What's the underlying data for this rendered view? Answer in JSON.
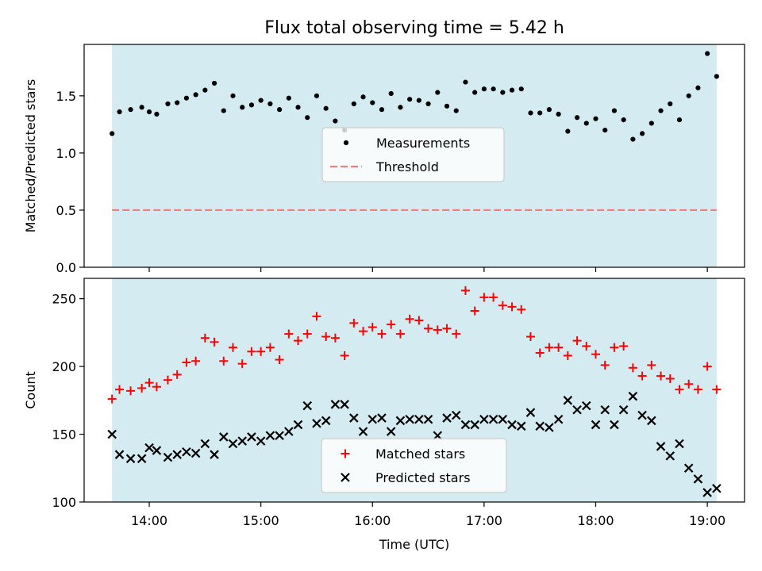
{
  "title": "Flux total observing time = 5.42 h",
  "colors": {
    "shade": "#d4ebf1",
    "measurement": "#000000",
    "threshold": "#f08080",
    "matched": "#ff0000",
    "predicted": "#000000"
  },
  "chart_data": [
    {
      "type": "scatter",
      "ylabel": "Matched/Predicted stars",
      "ylim": [
        0,
        1.95
      ],
      "yticks": [
        0.0,
        0.5,
        1.0,
        1.5
      ],
      "ytick_labels": [
        "0.0",
        "0.5",
        "1.0",
        "1.5"
      ],
      "xlim": [
        "13:25",
        "19:20"
      ],
      "xticks": [
        "14:00",
        "15:00",
        "16:00",
        "17:00",
        "18:00",
        "19:00"
      ],
      "shaded_span": [
        "13:40",
        "19:05"
      ],
      "threshold": 0.5,
      "legend": {
        "placement": "center",
        "entries": [
          "Measurements",
          "Threshold"
        ]
      },
      "series": [
        {
          "name": "Measurements",
          "marker": "dot",
          "x": [
            "13:40",
            "13:44",
            "13:50",
            "13:56",
            "14:00",
            "14:04",
            "14:10",
            "14:15",
            "14:20",
            "14:25",
            "14:30",
            "14:35",
            "14:40",
            "14:45",
            "14:50",
            "14:55",
            "15:00",
            "15:05",
            "15:10",
            "15:15",
            "15:20",
            "15:25",
            "15:30",
            "15:35",
            "15:40",
            "15:45",
            "15:50",
            "15:55",
            "16:00",
            "16:05",
            "16:10",
            "16:15",
            "16:20",
            "16:25",
            "16:30",
            "16:35",
            "16:40",
            "16:45",
            "16:50",
            "16:55",
            "17:00",
            "17:05",
            "17:10",
            "17:15",
            "17:20",
            "17:25",
            "17:30",
            "17:35",
            "17:40",
            "17:45",
            "17:50",
            "17:55",
            "18:00",
            "18:05",
            "18:10",
            "18:15",
            "18:20",
            "18:25",
            "18:30",
            "18:35",
            "18:40",
            "18:45",
            "18:50",
            "18:55",
            "19:00",
            "19:05"
          ],
          "y": [
            1.17,
            1.36,
            1.38,
            1.4,
            1.36,
            1.34,
            1.43,
            1.44,
            1.48,
            1.51,
            1.55,
            1.61,
            1.37,
            1.5,
            1.4,
            1.42,
            1.46,
            1.43,
            1.38,
            1.48,
            1.4,
            1.31,
            1.5,
            1.39,
            1.28,
            1.2,
            1.43,
            1.49,
            1.44,
            1.38,
            1.52,
            1.4,
            1.47,
            1.46,
            1.43,
            1.53,
            1.41,
            1.37,
            1.62,
            1.53,
            1.56,
            1.56,
            1.53,
            1.55,
            1.56,
            1.35,
            1.35,
            1.38,
            1.34,
            1.19,
            1.31,
            1.26,
            1.3,
            1.2,
            1.37,
            1.29,
            1.12,
            1.17,
            1.26,
            1.37,
            1.43,
            1.29,
            1.5,
            1.57,
            1.87,
            1.67
          ]
        }
      ]
    },
    {
      "type": "scatter",
      "xlabel": "Time (UTC)",
      "ylabel": "Count",
      "ylim": [
        100,
        265
      ],
      "yticks": [
        100,
        150,
        200,
        250
      ],
      "ytick_labels": [
        "100",
        "150",
        "200",
        "250"
      ],
      "xlim": [
        "13:25",
        "19:20"
      ],
      "xticks": [
        "14:00",
        "15:00",
        "16:00",
        "17:00",
        "18:00",
        "19:00"
      ],
      "xtick_labels": [
        "14:00",
        "15:00",
        "16:00",
        "17:00",
        "18:00",
        "19:00"
      ],
      "shaded_span": [
        "13:40",
        "19:05"
      ],
      "legend": {
        "placement": "lower center",
        "entries": [
          "Matched stars",
          "Predicted stars"
        ]
      },
      "series": [
        {
          "name": "Matched stars",
          "marker": "plus",
          "x": [
            "13:40",
            "13:44",
            "13:50",
            "13:56",
            "14:00",
            "14:04",
            "14:10",
            "14:15",
            "14:20",
            "14:25",
            "14:30",
            "14:35",
            "14:40",
            "14:45",
            "14:50",
            "14:55",
            "15:00",
            "15:05",
            "15:10",
            "15:15",
            "15:20",
            "15:25",
            "15:30",
            "15:35",
            "15:40",
            "15:45",
            "15:50",
            "15:55",
            "16:00",
            "16:05",
            "16:10",
            "16:15",
            "16:20",
            "16:25",
            "16:30",
            "16:35",
            "16:40",
            "16:45",
            "16:50",
            "16:55",
            "17:00",
            "17:05",
            "17:10",
            "17:15",
            "17:20",
            "17:25",
            "17:30",
            "17:35",
            "17:40",
            "17:45",
            "17:50",
            "17:55",
            "18:00",
            "18:05",
            "18:10",
            "18:15",
            "18:20",
            "18:25",
            "18:30",
            "18:35",
            "18:40",
            "18:45",
            "18:50",
            "18:55",
            "19:00",
            "19:05"
          ],
          "y": [
            176,
            183,
            182,
            184,
            188,
            185,
            190,
            194,
            203,
            204,
            221,
            218,
            204,
            214,
            202,
            211,
            211,
            214,
            205,
            224,
            219,
            224,
            237,
            222,
            221,
            208,
            232,
            226,
            229,
            224,
            231,
            224,
            235,
            234,
            228,
            227,
            228,
            224,
            256,
            241,
            251,
            251,
            245,
            244,
            242,
            222,
            210,
            214,
            214,
            208,
            219,
            215,
            209,
            201,
            214,
            215,
            199,
            193,
            201,
            193,
            191,
            183,
            187,
            183,
            200,
            183
          ]
        },
        {
          "name": "Predicted stars",
          "marker": "x",
          "x": [
            "13:40",
            "13:44",
            "13:50",
            "13:56",
            "14:00",
            "14:04",
            "14:10",
            "14:15",
            "14:20",
            "14:25",
            "14:30",
            "14:35",
            "14:40",
            "14:45",
            "14:50",
            "14:55",
            "15:00",
            "15:05",
            "15:10",
            "15:15",
            "15:20",
            "15:25",
            "15:30",
            "15:35",
            "15:40",
            "15:45",
            "15:50",
            "15:55",
            "16:00",
            "16:05",
            "16:10",
            "16:15",
            "16:20",
            "16:25",
            "16:30",
            "16:35",
            "16:40",
            "16:45",
            "16:50",
            "16:55",
            "17:00",
            "17:05",
            "17:10",
            "17:15",
            "17:20",
            "17:25",
            "17:30",
            "17:35",
            "17:40",
            "17:45",
            "17:50",
            "17:55",
            "18:00",
            "18:05",
            "18:10",
            "18:15",
            "18:20",
            "18:25",
            "18:30",
            "18:35",
            "18:40",
            "18:45",
            "18:50",
            "18:55",
            "19:00",
            "19:05"
          ],
          "y": [
            150,
            135,
            132,
            132,
            140,
            138,
            133,
            135,
            137,
            136,
            143,
            135,
            148,
            143,
            145,
            148,
            145,
            149,
            149,
            152,
            157,
            171,
            158,
            160,
            172,
            172,
            162,
            152,
            161,
            162,
            152,
            160,
            161,
            161,
            161,
            149,
            162,
            164,
            157,
            157,
            161,
            161,
            161,
            157,
            156,
            166,
            156,
            155,
            161,
            175,
            168,
            171,
            157,
            168,
            157,
            168,
            178,
            164,
            160,
            141,
            134,
            143,
            125,
            117,
            107,
            110
          ]
        }
      ]
    }
  ]
}
